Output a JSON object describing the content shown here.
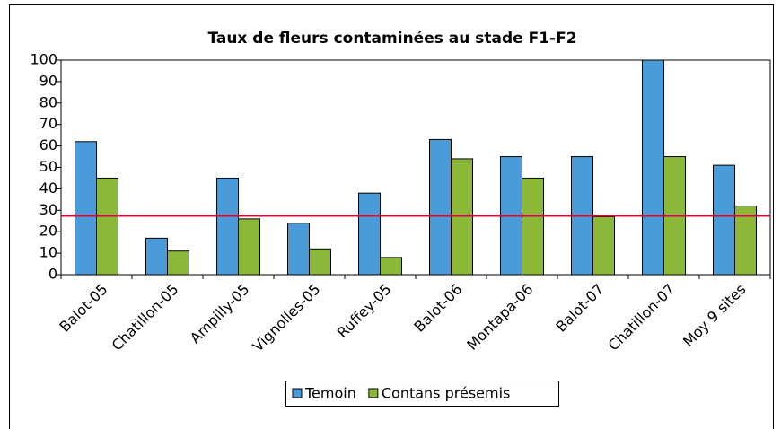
{
  "chart_data": {
    "type": "bar",
    "title": "Taux de fleurs contaminées au stade F1-F2",
    "categories": [
      "Balot-05",
      "Chatillon-05",
      "Ampilly-05",
      "Vignolles-05",
      "Ruffey-05",
      "Balot-06",
      "Montapa-06",
      "Balot-07",
      "Chatillon-07",
      "Moy 9 sites"
    ],
    "series": [
      {
        "name": "Temoin",
        "color": "#4a9bd8",
        "values": [
          62,
          17,
          45,
          24,
          38,
          63,
          55,
          55,
          100,
          51
        ]
      },
      {
        "name": "Contans présemis",
        "color": "#8cb83a",
        "values": [
          45,
          11,
          26,
          12,
          8,
          54,
          45,
          27,
          55,
          32
        ]
      }
    ],
    "reference_line": {
      "value": 27.5,
      "color": "#c0143c"
    },
    "ylim": [
      0,
      100
    ],
    "yticks": [
      0,
      10,
      20,
      30,
      40,
      50,
      60,
      70,
      80,
      90,
      100
    ],
    "legend": "bottom"
  }
}
